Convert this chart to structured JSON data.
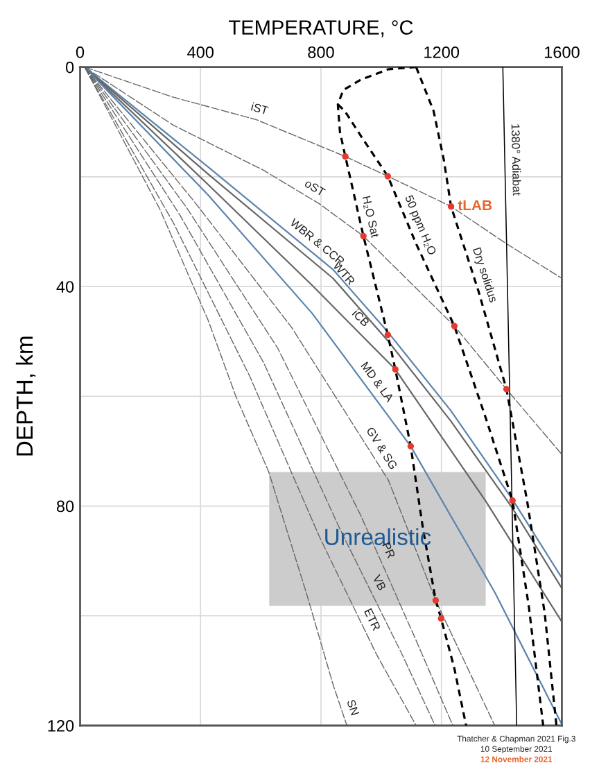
{
  "chart_data": {
    "type": "line",
    "xlabel": "TEMPERATURE, °C",
    "ylabel": "DEPTH, km",
    "xlim": [
      0,
      1600
    ],
    "ylim": [
      120,
      0
    ],
    "xticks": [
      0,
      400,
      800,
      1200,
      1600
    ],
    "yticks": [
      0,
      {
        "value": 20,
        "label": null
      },
      40,
      {
        "value": 60,
        "label": null
      },
      80,
      {
        "value": 100,
        "label": null
      },
      120
    ],
    "grid": true,
    "series": [
      {
        "type": "area",
        "name": "Unrealistic",
        "color": "#cccccc",
        "x": [
          628,
          1347,
          1347,
          628
        ],
        "values": [
          73.8,
          73.8,
          98.2,
          98.2
        ]
      },
      {
        "color": "#666666",
        "line_style": "dashed",
        "x": [
          15,
          310,
          586,
          881,
          1022,
          1232,
          1416,
          1600
        ],
        "values": [
          0,
          5.5,
          9.6,
          16.3,
          19.9,
          25.4,
          32.2,
          38.5
        ]
      },
      {
        "color": "#666666",
        "line_style": "dashed",
        "x": [
          15,
          310,
          609,
          794,
          941,
          1243,
          1416,
          1600
        ],
        "values": [
          0,
          10.6,
          18.8,
          24.9,
          30.8,
          47.2,
          58.7,
          70.6
        ]
      },
      {
        "color": "#5b84ad",
        "line_style": "solid",
        "x": [
          15,
          425,
          840,
          1024,
          1231,
          1436,
          1600
        ],
        "values": [
          0,
          18.2,
          36.9,
          48.4,
          62.6,
          78.8,
          93.1
        ]
      },
      {
        "color": "#666666",
        "line_style": "solid",
        "x": [
          15,
          425,
          840,
          1024,
          1231,
          1436,
          1600
        ],
        "values": [
          0,
          19.5,
          38.5,
          50.0,
          64.5,
          80.4,
          95.0
        ]
      },
      {
        "color": "#666666",
        "line_style": "solid",
        "x": [
          15,
          425,
          771,
          1047,
          1347,
          1600
        ],
        "values": [
          0,
          21.4,
          39.8,
          55.1,
          79.1,
          101.1
        ]
      },
      {
        "color": "#5b84ad",
        "line_style": "solid",
        "x": [
          15,
          425,
          771,
          1098,
          1377,
          1600
        ],
        "values": [
          0,
          23.3,
          44.9,
          69.1,
          95.7,
          119.8
        ]
      },
      {
        "color": "#666666",
        "line_style": "dashed",
        "x": [
          15,
          379,
          702,
          1024,
          1181,
          1377
        ],
        "values": [
          0,
          24.5,
          47.4,
          75.3,
          97.2,
          120
        ]
      },
      {
        "color": "#666666",
        "line_style": "dashed",
        "x": [
          15,
          356,
          656,
          932,
          1116,
          1238
        ],
        "values": [
          0,
          25.8,
          51.2,
          81.7,
          104.5,
          120
        ]
      },
      {
        "color": "#666666",
        "line_style": "dashed",
        "x": [
          15,
          333,
          609,
          863,
          1070,
          1179
        ],
        "values": [
          0,
          27.1,
          53.8,
          84.2,
          107.1,
          120
        ]
      },
      {
        "color": "#666666",
        "line_style": "dashed",
        "x": [
          15,
          310,
          563,
          794,
          985,
          1116
        ],
        "values": [
          0,
          28.4,
          56.3,
          85.5,
          107.1,
          120
        ]
      },
      {
        "color": "#666666",
        "line_style": "dashed",
        "x": [
          15,
          264,
          425,
          518,
          626,
          755,
          840,
          886
        ],
        "values": [
          0,
          25.8,
          46.1,
          60.1,
          73.7,
          96.5,
          112.5,
          120
        ]
      },
      {
        "color": "#000000",
        "line_style": "solid",
        "x": [
          1404,
          1450
        ],
        "values": [
          0,
          120
        ]
      },
      {
        "color": "#000000",
        "line_style": "dashed",
        "x": [
          1116,
          1024,
          932,
          874,
          856,
          863,
          881,
          941,
          1022,
          1047,
          1098,
          1139,
          1181,
          1199,
          1243,
          1282
        ],
        "values": [
          0,
          0.4,
          2.3,
          4.2,
          6.8,
          11.8,
          16.3,
          30.8,
          48.8,
          55.1,
          69.1,
          84.2,
          97.2,
          100.5,
          109.6,
          120
        ]
      },
      {
        "color": "#000000",
        "line_style": "dashed",
        "x": [
          856,
          879,
          932,
          1022,
          1116,
          1243,
          1347,
          1436,
          1490,
          1538
        ],
        "values": [
          6.8,
          8.0,
          12.5,
          19.9,
          32.2,
          47.2,
          63.9,
          79.0,
          98.2,
          120
        ]
      },
      {
        "color": "#000000",
        "line_style": "dashed",
        "x": [
          1116,
          1174,
          1208,
          1232,
          1324,
          1416,
          1485,
          1543,
          1582
        ],
        "values": [
          0,
          8.0,
          16.9,
          25.4,
          41.0,
          58.7,
          79.2,
          99.5,
          120
        ]
      },
      {
        "type": "scatter",
        "color": "#e8392d",
        "marker": "circle",
        "x": [
          881,
          1022,
          1232,
          941,
          1243,
          1416,
          1022,
          1047,
          1098,
          1436,
          1181,
          1199
        ],
        "values": [
          16.3,
          19.9,
          25.4,
          30.8,
          47.2,
          58.7,
          48.8,
          55.1,
          69.1,
          79.0,
          97.2,
          100.5
        ]
      }
    ],
    "annotations": [
      {
        "text": "iST",
        "x": 586,
        "y": 9.6
      },
      {
        "text": "oST",
        "x": 760,
        "y": 23.8
      },
      {
        "text": "WBR & CCR",
        "x": 764,
        "y": 33.5
      },
      {
        "text": "WTR",
        "x": 848,
        "y": 39.0
      },
      {
        "text": "iCB",
        "x": 905,
        "y": 47.2
      },
      {
        "text": "MD & LA",
        "x": 956,
        "y": 58.6
      },
      {
        "text": "GV & SG",
        "x": 970,
        "y": 70.6
      },
      {
        "text": "PR",
        "x": 990,
        "y": 88.9
      },
      {
        "text": "VB",
        "x": 960,
        "y": 94.9
      },
      {
        "text": "ETR",
        "x": 936,
        "y": 101.6
      },
      {
        "text": "SN",
        "x": 870,
        "y": 117.4
      },
      {
        "text": "H₂O Sat",
        "x": 928,
        "y": 27.7
      },
      {
        "text": "50 ppm H₂O",
        "x": 1096,
        "y": 29.6
      },
      {
        "text": "Dry solidus",
        "x": 1309,
        "y": 38.5
      },
      {
        "text": "1380° Adiabat",
        "x": 1410,
        "y": 16.9
      },
      {
        "text": "tLAB",
        "x": 1232,
        "y": 25.4
      },
      "Thatcher & Chapman 2021 Fig.3",
      "10 September 2021",
      "12 November 2021"
    ]
  }
}
